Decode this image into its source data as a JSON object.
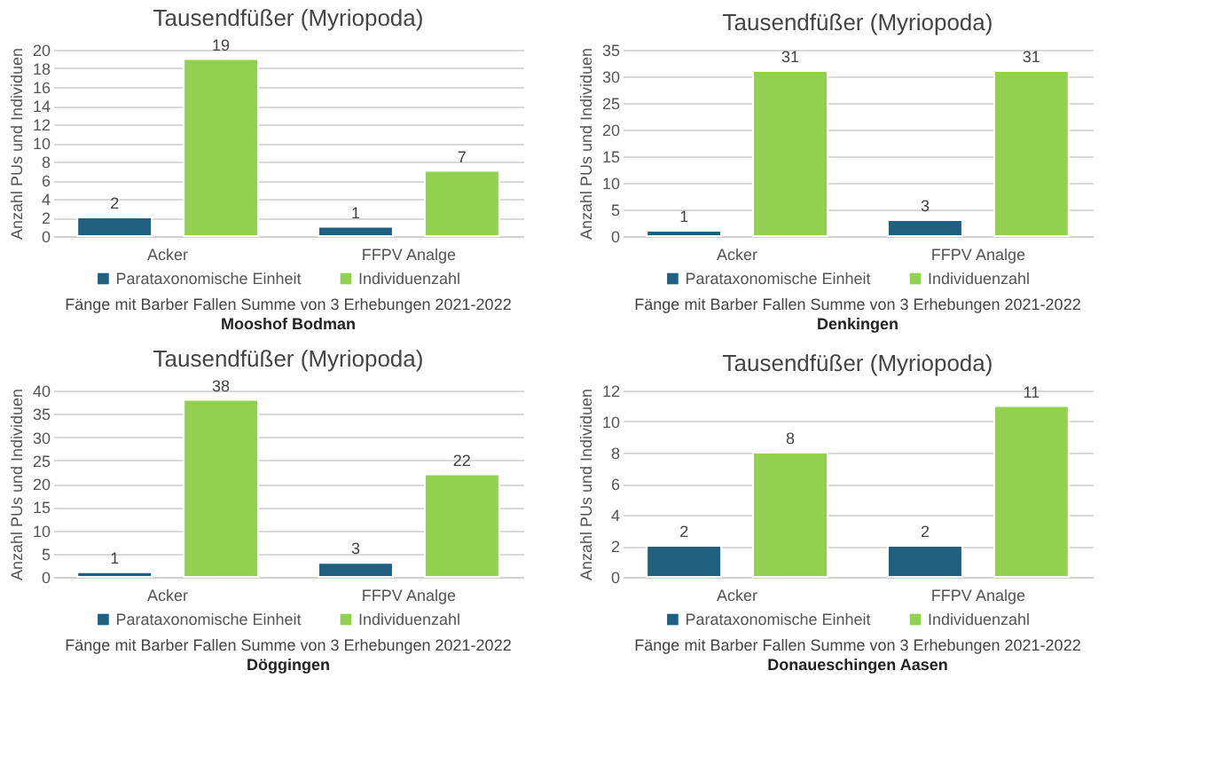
{
  "chart_data": [
    {
      "type": "bar",
      "title": "Tausendfüßer (Myriopoda)",
      "ylabel": "Anzahl PUs und Individuen",
      "categories": [
        "Acker",
        "FFPV Analge"
      ],
      "series": [
        {
          "name": "Parataxonomische Einheit",
          "color": "#1f5f7f",
          "values": [
            2,
            1
          ]
        },
        {
          "name": "Individuenzahl",
          "color": "#92d050",
          "values": [
            19,
            7
          ]
        }
      ],
      "ylim": [
        0,
        20
      ],
      "yticks": [
        0,
        2,
        4,
        6,
        8,
        10,
        12,
        14,
        16,
        18,
        20
      ],
      "grid": "y",
      "legend": "bottom",
      "data_labels": true,
      "annotations": [
        "Fänge mit Barber Fallen Summe von 3 Erhebungen 2021-2022",
        "Mooshof Bodman"
      ]
    },
    {
      "type": "bar",
      "title": "Tausendfüßer (Myriopoda)",
      "ylabel": "Anzahl PUs und Individuen",
      "categories": [
        "Acker",
        "FFPV Analge"
      ],
      "series": [
        {
          "name": "Parataxonomische Einheit",
          "color": "#1f5f7f",
          "values": [
            1,
            3
          ]
        },
        {
          "name": "Individuenzahl",
          "color": "#92d050",
          "values": [
            31,
            31
          ]
        }
      ],
      "ylim": [
        0,
        35
      ],
      "yticks": [
        0,
        5,
        10,
        15,
        20,
        25,
        30,
        35
      ],
      "grid": "y",
      "legend": "bottom",
      "data_labels": true,
      "annotations": [
        "Fänge mit Barber Fallen Summe von 3 Erhebungen 2021-2022",
        "Denkingen"
      ]
    },
    {
      "type": "bar",
      "title": "Tausendfüßer (Myriopoda)",
      "ylabel": "Anzahl PUs und Individuen",
      "categories": [
        "Acker",
        "FFPV Analge"
      ],
      "series": [
        {
          "name": "Parataxonomische Einheit",
          "color": "#1f5f7f",
          "values": [
            1,
            3
          ]
        },
        {
          "name": "Individuenzahl",
          "color": "#92d050",
          "values": [
            38,
            22
          ]
        }
      ],
      "ylim": [
        0,
        40
      ],
      "yticks": [
        0,
        5,
        10,
        15,
        20,
        25,
        30,
        35,
        40
      ],
      "grid": "y",
      "legend": "bottom",
      "data_labels": true,
      "annotations": [
        "Fänge mit Barber Fallen Summe von 3 Erhebungen 2021-2022",
        "Döggingen"
      ]
    },
    {
      "type": "bar",
      "title": "Tausendfüßer (Myriopoda)",
      "ylabel": "Anzahl PUs und Individuen",
      "categories": [
        "Acker",
        "FFPV Analge"
      ],
      "series": [
        {
          "name": "Parataxonomische Einheit",
          "color": "#1f5f7f",
          "values": [
            2,
            2
          ]
        },
        {
          "name": "Individuenzahl",
          "color": "#92d050",
          "values": [
            8,
            11
          ]
        }
      ],
      "ylim": [
        0,
        12
      ],
      "yticks": [
        0,
        2,
        4,
        6,
        8,
        10,
        12
      ],
      "grid": "y",
      "legend": "bottom",
      "data_labels": true,
      "annotations": [
        "Fänge mit Barber Fallen Summe von 3 Erhebungen 2021-2022",
        "Donaueschingen Aasen"
      ]
    }
  ]
}
